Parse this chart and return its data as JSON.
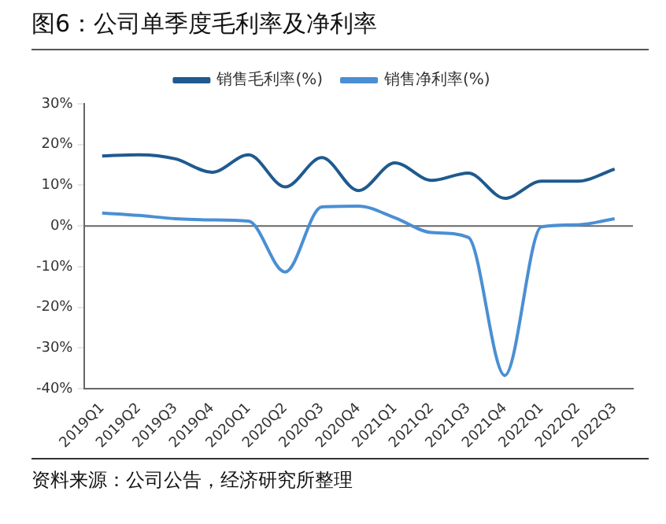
{
  "chart_data": {
    "type": "line",
    "title": "图6：公司单季度毛利率及净利率",
    "categories": [
      "2019Q1",
      "2019Q2",
      "2019Q3",
      "2019Q4",
      "2020Q1",
      "2020Q2",
      "2020Q3",
      "2020Q4",
      "2021Q1",
      "2021Q2",
      "2021Q3",
      "2021Q4",
      "2022Q1",
      "2022Q2",
      "2022Q3"
    ],
    "series": [
      {
        "name": "销售毛利率(%)",
        "color": "#1f5a8e",
        "values": [
          17.2,
          17.5,
          16.5,
          13.2,
          17.5,
          9.6,
          16.8,
          8.7,
          15.5,
          11.2,
          13.0,
          6.8,
          11.0,
          11.0,
          14.0
        ]
      },
      {
        "name": "销售净利率(%)",
        "color": "#4a8fd4",
        "values": [
          3.2,
          2.6,
          1.8,
          1.5,
          1.2,
          -11.3,
          4.7,
          4.9,
          2.0,
          -1.6,
          -2.8,
          -36.7,
          -0.2,
          0.3,
          1.8
        ]
      }
    ],
    "ylim": [
      -40,
      30
    ],
    "yticks": [
      {
        "value": -40,
        "label": "-40%"
      },
      {
        "value": -30,
        "label": "-30%"
      },
      {
        "value": -20,
        "label": "-20%"
      },
      {
        "value": -10,
        "label": "-10%"
      },
      {
        "value": 0,
        "label": "0%"
      },
      {
        "value": 10,
        "label": "10%"
      },
      {
        "value": 20,
        "label": "20%"
      },
      {
        "value": 30,
        "label": "30%"
      }
    ],
    "grid": false,
    "ref_lines": [
      {
        "axis": "y",
        "value": 0,
        "color": "#666666"
      }
    ],
    "legend": "top",
    "marker": "none",
    "line_style": "solid",
    "annotations": [
      "资料来源：公司公告，经济研究所整理"
    ]
  }
}
